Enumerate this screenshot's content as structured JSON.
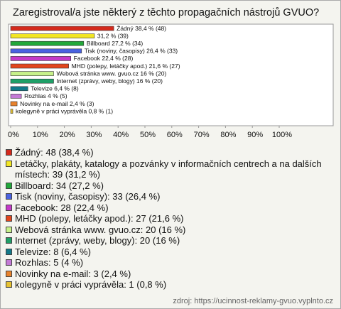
{
  "chart_data": {
    "type": "bar",
    "orientation": "horizontal",
    "title": "Zaregistroval/a jste některý z těchto propagačních nástrojů GVUO?",
    "categories": [
      "Žádný",
      "Letáčky, plakáty, katalogy a pozvánky v informačních centrech a na dalších místech",
      "Billboard",
      "Tisk (noviny, časopisy)",
      "Facebook",
      "MHD (polepy, letáčky apod.)",
      "Webová stránka www. gvuo.cz",
      "Internet (zprávy, weby, blogy)",
      "Televize",
      "Rozhlas",
      "Novinky na e-mail",
      "kolegyně v práci vyprávěla"
    ],
    "values": [
      38.4,
      31.2,
      27.2,
      26.4,
      22.4,
      21.6,
      16,
      16,
      6.4,
      4,
      2.4,
      0.8
    ],
    "bar_labels": [
      "Žádný 38,4 % (48)",
      "31,2 % (39)",
      "Billboard 27,2 % (34)",
      "Tisk (noviny, časopisy) 26,4 % (33)",
      "Facebook 22,4 % (28)",
      "MHD (polepy, letáčky apod.) 21,6 % (27)",
      "Webová stránka www. gvuo.cz 16 % (20)",
      "Internet (zprávy, weby, blogy) 16 % (20)",
      "Televize 6,4 % (8)",
      "Rozhlas 4 % (5)",
      "Novinky na e-mail 2,4 % (3)",
      "kolegyně v práci vyprávěla 0,8 % (1)"
    ],
    "legend_labels": [
      "Žádný: 48 (38,4 %)",
      "Letáčky, plakáty, katalogy a pozvánky v informačních centrech a na dalších místech: 39 (31,2 %)",
      "Billboard: 34 (27,2 %)",
      "Tisk (noviny, časopisy): 33 (26,4 %)",
      "Facebook: 28 (22,4 %)",
      "MHD (polepy, letáčky apod.): 27 (21,6 %)",
      "Webová stránka www. gvuo.cz: 20 (16 %)",
      "Internet (zprávy, weby, blogy): 20 (16 %)",
      "Televize: 8 (6,4 %)",
      "Rozhlas: 5 (4 %)",
      "Novinky na e-mail: 3 (2,4 %)",
      "kolegyně v práci vyprávěla: 1 (0,8 %)"
    ],
    "colors": [
      "#d42a1c",
      "#f2e624",
      "#22a83a",
      "#4a62e0",
      "#c43ac8",
      "#e2461e",
      "#c6f08a",
      "#1fa068",
      "#127a8a",
      "#c47ad6",
      "#e8822c",
      "#e6c232"
    ],
    "xlim": [
      0,
      100
    ],
    "xticks": [
      {
        "value": 0,
        "label": "0%"
      },
      {
        "value": 10,
        "label": "10%"
      },
      {
        "value": 20,
        "label": "20%"
      },
      {
        "value": 30,
        "label": "30%"
      },
      {
        "value": 40,
        "label": "40%"
      },
      {
        "value": 50,
        "label": "50%"
      },
      {
        "value": 60,
        "label": "60%"
      },
      {
        "value": 70,
        "label": "70%"
      },
      {
        "value": 80,
        "label": "80%"
      },
      {
        "value": 90,
        "label": "90%"
      },
      {
        "value": 100,
        "label": "100%"
      }
    ],
    "source": "zdroj: https://ucinnost-reklamy-gvuo.vyplnto.cz"
  }
}
